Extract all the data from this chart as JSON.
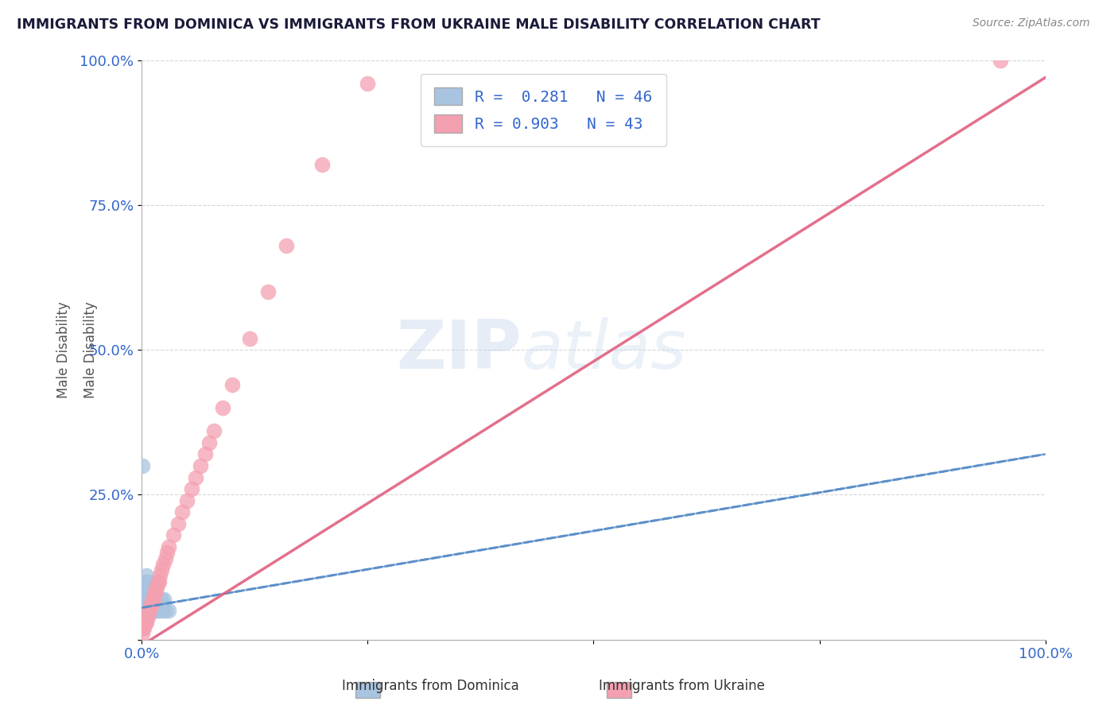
{
  "title": "IMMIGRANTS FROM DOMINICA VS IMMIGRANTS FROM UKRAINE MALE DISABILITY CORRELATION CHART",
  "source": "Source: ZipAtlas.com",
  "ylabel": "Male Disability",
  "xlim": [
    0,
    1
  ],
  "ylim": [
    0,
    1
  ],
  "dominica_color": "#a8c4e0",
  "ukraine_color": "#f4a0b0",
  "dominica_line_color": "#5b8fc9",
  "ukraine_line_color": "#e06080",
  "dominica_R": 0.281,
  "dominica_N": 46,
  "ukraine_R": 0.903,
  "ukraine_N": 43,
  "watermark": "ZIPatlas",
  "dominica_x": [
    0.001,
    0.002,
    0.002,
    0.003,
    0.003,
    0.003,
    0.004,
    0.004,
    0.004,
    0.005,
    0.005,
    0.005,
    0.005,
    0.006,
    0.006,
    0.006,
    0.007,
    0.007,
    0.008,
    0.008,
    0.008,
    0.009,
    0.009,
    0.01,
    0.01,
    0.011,
    0.011,
    0.012,
    0.012,
    0.013,
    0.014,
    0.015,
    0.015,
    0.016,
    0.017,
    0.018,
    0.019,
    0.02,
    0.021,
    0.022,
    0.023,
    0.024,
    0.025,
    0.026,
    0.001,
    0.03
  ],
  "dominica_y": [
    0.05,
    0.06,
    0.08,
    0.04,
    0.07,
    0.09,
    0.05,
    0.07,
    0.1,
    0.04,
    0.06,
    0.08,
    0.11,
    0.05,
    0.07,
    0.09,
    0.06,
    0.08,
    0.05,
    0.07,
    0.1,
    0.06,
    0.08,
    0.05,
    0.09,
    0.06,
    0.08,
    0.05,
    0.07,
    0.06,
    0.07,
    0.05,
    0.08,
    0.06,
    0.07,
    0.05,
    0.06,
    0.05,
    0.06,
    0.07,
    0.05,
    0.06,
    0.07,
    0.05,
    0.3,
    0.05
  ],
  "ukraine_x": [
    0.001,
    0.002,
    0.003,
    0.004,
    0.005,
    0.006,
    0.007,
    0.008,
    0.009,
    0.01,
    0.011,
    0.012,
    0.013,
    0.014,
    0.015,
    0.016,
    0.017,
    0.018,
    0.019,
    0.02,
    0.022,
    0.024,
    0.026,
    0.028,
    0.03,
    0.035,
    0.04,
    0.045,
    0.05,
    0.055,
    0.06,
    0.065,
    0.07,
    0.075,
    0.08,
    0.09,
    0.1,
    0.12,
    0.14,
    0.16,
    0.2,
    0.25,
    0.95
  ],
  "ukraine_y": [
    0.01,
    0.02,
    0.02,
    0.03,
    0.03,
    0.04,
    0.04,
    0.05,
    0.05,
    0.06,
    0.06,
    0.07,
    0.07,
    0.08,
    0.08,
    0.09,
    0.09,
    0.1,
    0.1,
    0.11,
    0.12,
    0.13,
    0.14,
    0.15,
    0.16,
    0.18,
    0.2,
    0.22,
    0.24,
    0.26,
    0.28,
    0.3,
    0.32,
    0.34,
    0.36,
    0.4,
    0.44,
    0.52,
    0.6,
    0.68,
    0.82,
    0.96,
    1.0
  ],
  "dominica_trendline": [
    0.0,
    1.0,
    0.055,
    0.32
  ],
  "ukraine_trendline": [
    0.0,
    1.0,
    -0.01,
    0.97
  ]
}
